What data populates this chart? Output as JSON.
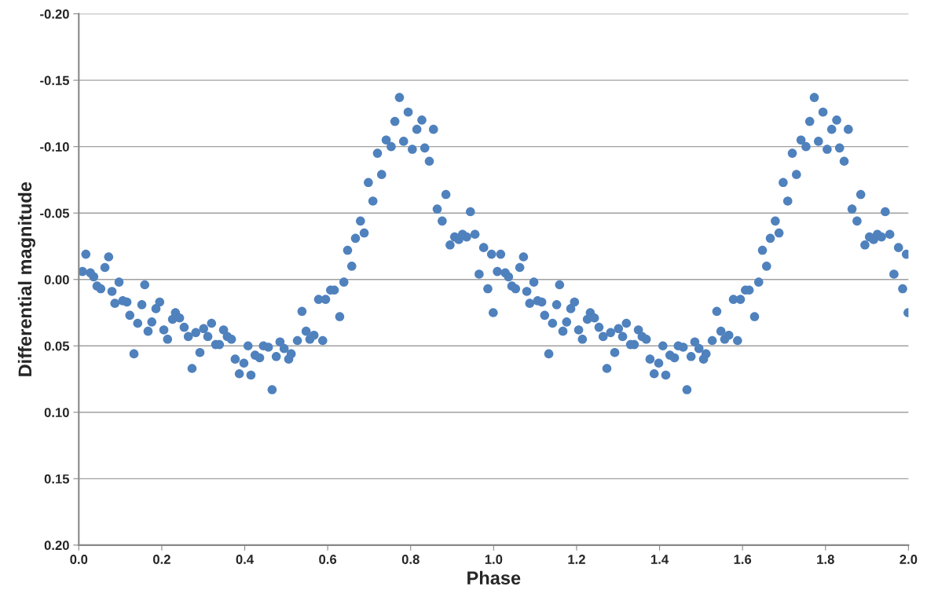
{
  "chart_data": {
    "type": "scatter",
    "xlabel": "Phase",
    "ylabel": "Differential magnitude",
    "x": [
      0.009,
      0.017,
      0.028,
      0.036,
      0.044,
      0.053,
      0.063,
      0.072,
      0.08,
      0.087,
      0.097,
      0.106,
      0.116,
      0.123,
      0.133,
      0.142,
      0.152,
      0.159,
      0.167,
      0.176,
      0.186,
      0.195,
      0.205,
      0.214,
      0.226,
      0.233,
      0.243,
      0.254,
      0.264,
      0.273,
      0.282,
      0.292,
      0.301,
      0.311,
      0.32,
      0.33,
      0.339,
      0.349,
      0.358,
      0.368,
      0.377,
      0.387,
      0.398,
      0.408,
      0.415,
      0.425,
      0.436,
      0.445,
      0.457,
      0.466,
      0.476,
      0.485,
      0.495,
      0.506,
      0.512,
      0.527,
      0.538,
      0.548,
      0.557,
      0.567,
      0.578,
      0.588,
      0.595,
      0.607,
      0.616,
      0.629,
      0.639,
      0.648,
      0.658,
      0.667,
      0.679,
      0.688,
      0.698,
      0.709,
      0.72,
      0.73,
      0.741,
      0.753,
      0.762,
      0.773,
      0.783,
      0.794,
      0.804,
      0.815,
      0.827,
      0.834,
      0.845,
      0.855,
      0.864,
      0.876,
      0.885,
      0.895,
      0.906,
      0.916,
      0.925,
      0.935,
      0.944,
      0.955,
      0.965,
      0.976,
      0.986,
      0.995,
      0.999,
      1.009,
      1.017,
      1.028,
      1.036,
      1.044,
      1.053,
      1.063,
      1.072,
      1.08,
      1.087,
      1.097,
      1.106,
      1.116,
      1.123,
      1.133,
      1.142,
      1.152,
      1.159,
      1.167,
      1.176,
      1.186,
      1.195,
      1.205,
      1.214,
      1.226,
      1.233,
      1.243,
      1.254,
      1.264,
      1.273,
      1.282,
      1.292,
      1.301,
      1.311,
      1.32,
      1.33,
      1.339,
      1.349,
      1.358,
      1.368,
      1.377,
      1.387,
      1.398,
      1.408,
      1.415,
      1.425,
      1.436,
      1.445,
      1.457,
      1.466,
      1.476,
      1.485,
      1.495,
      1.506,
      1.512,
      1.527,
      1.538,
      1.548,
      1.557,
      1.567,
      1.578,
      1.588,
      1.595,
      1.607,
      1.616,
      1.629,
      1.639,
      1.648,
      1.658,
      1.667,
      1.679,
      1.688,
      1.698,
      1.709,
      1.72,
      1.73,
      1.741,
      1.753,
      1.762,
      1.773,
      1.783,
      1.794,
      1.804,
      1.815,
      1.827,
      1.834,
      1.845,
      1.855,
      1.864,
      1.876,
      1.885,
      1.895,
      1.906,
      1.916,
      1.925,
      1.935,
      1.944,
      1.955,
      1.965,
      1.976,
      1.986,
      1.995,
      1.999
    ],
    "series": [
      {
        "color": "#4f81bd",
        "values": [
          -0.006,
          -0.019,
          -0.005,
          -0.002,
          0.005,
          0.007,
          -0.009,
          -0.017,
          0.009,
          0.018,
          0.002,
          0.016,
          0.017,
          0.027,
          0.056,
          0.033,
          0.019,
          0.004,
          0.039,
          0.032,
          0.022,
          0.017,
          0.038,
          0.045,
          0.03,
          0.025,
          0.029,
          0.036,
          0.043,
          0.067,
          0.04,
          0.055,
          0.037,
          0.043,
          0.033,
          0.049,
          0.049,
          0.038,
          0.043,
          0.045,
          0.06,
          0.071,
          0.063,
          0.05,
          0.072,
          0.057,
          0.059,
          0.05,
          0.051,
          0.083,
          0.058,
          0.047,
          0.052,
          0.06,
          0.056,
          0.046,
          0.024,
          0.039,
          0.045,
          0.042,
          0.015,
          0.046,
          0.015,
          0.008,
          0.008,
          0.028,
          0.002,
          -0.022,
          -0.01,
          -0.031,
          -0.044,
          -0.035,
          -0.073,
          -0.059,
          -0.095,
          -0.079,
          -0.105,
          -0.1,
          -0.119,
          -0.137,
          -0.104,
          -0.126,
          -0.098,
          -0.113,
          -0.12,
          -0.099,
          -0.089,
          -0.113,
          -0.053,
          -0.044,
          -0.064,
          -0.026,
          -0.032,
          -0.03,
          -0.034,
          -0.032,
          -0.051,
          -0.034,
          -0.004,
          -0.024,
          0.007,
          -0.019,
          0.025,
          -0.006,
          -0.019,
          -0.005,
          -0.002,
          0.005,
          0.007,
          -0.009,
          -0.017,
          0.009,
          0.018,
          0.002,
          0.016,
          0.017,
          0.027,
          0.056,
          0.033,
          0.019,
          0.004,
          0.039,
          0.032,
          0.022,
          0.017,
          0.038,
          0.045,
          0.03,
          0.025,
          0.029,
          0.036,
          0.043,
          0.067,
          0.04,
          0.055,
          0.037,
          0.043,
          0.033,
          0.049,
          0.049,
          0.038,
          0.043,
          0.045,
          0.06,
          0.071,
          0.063,
          0.05,
          0.072,
          0.057,
          0.059,
          0.05,
          0.051,
          0.083,
          0.058,
          0.047,
          0.052,
          0.06,
          0.056,
          0.046,
          0.024,
          0.039,
          0.045,
          0.042,
          0.015,
          0.046,
          0.015,
          0.008,
          0.008,
          0.028,
          0.002,
          -0.022,
          -0.01,
          -0.031,
          -0.044,
          -0.035,
          -0.073,
          -0.059,
          -0.095,
          -0.079,
          -0.105,
          -0.1,
          -0.119,
          -0.137,
          -0.104,
          -0.126,
          -0.098,
          -0.113,
          -0.12,
          -0.099,
          -0.089,
          -0.113,
          -0.053,
          -0.044,
          -0.064,
          -0.026,
          -0.032,
          -0.03,
          -0.034,
          -0.032,
          -0.051,
          -0.034,
          -0.004,
          -0.024,
          0.007,
          -0.019,
          0.025
        ]
      }
    ],
    "xlim": [
      0.0,
      2.0
    ],
    "xticks": [
      {
        "value": 0,
        "label": "0.0"
      },
      0.2,
      0.4,
      0.6,
      0.8,
      {
        "value": 1,
        "label": "1.0"
      },
      1.2,
      1.4,
      1.6,
      1.8,
      {
        "value": 2,
        "label": "2.0"
      }
    ],
    "ylim": [
      0.2,
      -0.2
    ],
    "yticks": [
      {
        "value": -0.2,
        "label": "-0.20"
      },
      {
        "value": -0.15,
        "label": "-0.15"
      },
      {
        "value": -0.1,
        "label": "-0.10"
      },
      {
        "value": -0.05,
        "label": "-0.05"
      },
      {
        "value": 0.0,
        "label": "0.00"
      },
      {
        "value": 0.05,
        "label": "0.05"
      },
      {
        "value": 0.1,
        "label": "0.10"
      },
      {
        "value": 0.15,
        "label": "0.15"
      },
      {
        "value": 0.2,
        "label": "0.20"
      }
    ],
    "grid": "y",
    "marker": "circle"
  }
}
